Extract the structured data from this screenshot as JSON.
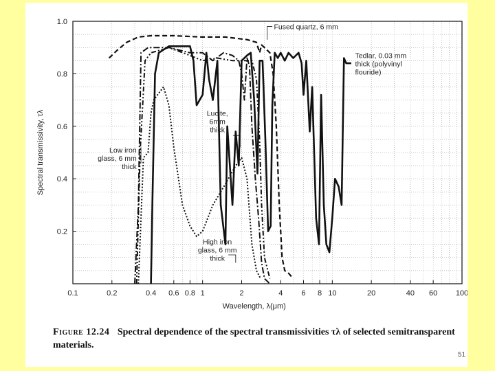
{
  "caption": {
    "figure_number": "Figure 12.24",
    "text": "Spectral dependence of the spectral transmissivities τλ of selected semitransparent materials."
  },
  "page_number": "51",
  "colors": {
    "background": "#ffffa0",
    "frame": "#ffffff",
    "ink": "#111111",
    "grid": "#888888"
  },
  "chart_data": {
    "type": "line",
    "title": "",
    "xlabel": "Wavelength, λ(μm)",
    "ylabel": "Spectral transmissivity, τλ",
    "xscale": "log",
    "xlim": [
      0.1,
      100
    ],
    "ylim": [
      0,
      1.0
    ],
    "grid": true,
    "x_ticks": [
      {
        "value": 0.1,
        "label": "0.1"
      },
      {
        "value": 0.2,
        "label": "0.2"
      },
      {
        "value": 0.4,
        "label": "0.4"
      },
      {
        "value": 0.6,
        "label": "0.6"
      },
      {
        "value": 0.8,
        "label": "0.8"
      },
      {
        "value": 1,
        "label": "1"
      },
      {
        "value": 2,
        "label": "2"
      },
      {
        "value": 4,
        "label": "4"
      },
      {
        "value": 6,
        "label": "6"
      },
      {
        "value": 8,
        "label": "8"
      },
      {
        "value": 10,
        "label": "10"
      },
      {
        "value": 20,
        "label": "20"
      },
      {
        "value": 40,
        "label": "40"
      },
      {
        "value": 60,
        "label": "60"
      },
      {
        "value": 100,
        "label": "100"
      }
    ],
    "y_ticks": [
      {
        "value": 0.2,
        "label": "0.2"
      },
      {
        "value": 0.4,
        "label": "0.4"
      },
      {
        "value": 0.6,
        "label": "0.6"
      },
      {
        "value": 0.8,
        "label": "0.8"
      },
      {
        "value": 1.0,
        "label": "1.0"
      }
    ],
    "series": [
      {
        "name": "Fused quartz, 6 mm",
        "style": "dashed",
        "points": [
          [
            0.19,
            0.86
          ],
          [
            0.22,
            0.89
          ],
          [
            0.26,
            0.92
          ],
          [
            0.32,
            0.94
          ],
          [
            0.4,
            0.945
          ],
          [
            0.6,
            0.945
          ],
          [
            1.0,
            0.94
          ],
          [
            1.5,
            0.94
          ],
          [
            2.2,
            0.93
          ],
          [
            2.6,
            0.92
          ],
          [
            2.75,
            0.88
          ],
          [
            2.85,
            0.91
          ],
          [
            3.0,
            0.9
          ],
          [
            3.3,
            0.88
          ],
          [
            3.5,
            0.8
          ],
          [
            3.7,
            0.6
          ],
          [
            3.9,
            0.3
          ],
          [
            4.1,
            0.1
          ],
          [
            4.3,
            0.05
          ],
          [
            4.6,
            0.04
          ],
          [
            5.0,
            0.02
          ]
        ]
      },
      {
        "name": "Tedlar, 0.03 mm thick (polyvinyl flouride)",
        "style": "solid",
        "points": [
          [
            0.4,
            0.0
          ],
          [
            0.41,
            0.3
          ],
          [
            0.43,
            0.8
          ],
          [
            0.46,
            0.88
          ],
          [
            0.55,
            0.905
          ],
          [
            0.8,
            0.905
          ],
          [
            0.85,
            0.85
          ],
          [
            0.9,
            0.68
          ],
          [
            1.0,
            0.72
          ],
          [
            1.07,
            0.88
          ],
          [
            1.12,
            0.78
          ],
          [
            1.2,
            0.7
          ],
          [
            1.3,
            0.85
          ],
          [
            1.38,
            0.3
          ],
          [
            1.5,
            0.15
          ],
          [
            1.55,
            0.6
          ],
          [
            1.7,
            0.3
          ],
          [
            1.8,
            0.58
          ],
          [
            1.9,
            0.45
          ],
          [
            2.0,
            0.85
          ],
          [
            2.2,
            0.87
          ],
          [
            2.35,
            0.88
          ],
          [
            2.5,
            0.7
          ],
          [
            2.65,
            0.42
          ],
          [
            2.75,
            0.85
          ],
          [
            2.9,
            0.85
          ],
          [
            3.05,
            0.55
          ],
          [
            3.2,
            0.2
          ],
          [
            3.35,
            0.22
          ],
          [
            3.45,
            0.68
          ],
          [
            3.6,
            0.88
          ],
          [
            3.8,
            0.86
          ],
          [
            4.0,
            0.88
          ],
          [
            4.3,
            0.85
          ],
          [
            4.6,
            0.88
          ],
          [
            5.0,
            0.86
          ],
          [
            5.5,
            0.88
          ],
          [
            5.8,
            0.84
          ],
          [
            6.0,
            0.72
          ],
          [
            6.3,
            0.85
          ],
          [
            6.7,
            0.58
          ],
          [
            7.0,
            0.75
          ],
          [
            7.5,
            0.25
          ],
          [
            7.9,
            0.15
          ],
          [
            8.2,
            0.72
          ],
          [
            8.6,
            0.3
          ],
          [
            9.0,
            0.15
          ],
          [
            9.5,
            0.12
          ],
          [
            10.0,
            0.25
          ],
          [
            10.5,
            0.4
          ],
          [
            11.2,
            0.37
          ],
          [
            11.8,
            0.3
          ],
          [
            12.3,
            0.86
          ],
          [
            12.8,
            0.84
          ],
          [
            14.0,
            0.84
          ]
        ]
      },
      {
        "name": "Lucite, 6mm thick",
        "style": "dash-dot",
        "points": [
          [
            0.3,
            0.0
          ],
          [
            0.32,
            0.3
          ],
          [
            0.335,
            0.88
          ],
          [
            0.38,
            0.9
          ],
          [
            0.55,
            0.9
          ],
          [
            0.8,
            0.88
          ],
          [
            1.0,
            0.88
          ],
          [
            1.2,
            0.85
          ],
          [
            1.45,
            0.88
          ],
          [
            1.7,
            0.87
          ],
          [
            1.9,
            0.85
          ],
          [
            2.0,
            0.8
          ],
          [
            2.1,
            0.7
          ],
          [
            2.2,
            0.86
          ],
          [
            2.3,
            0.83
          ],
          [
            2.4,
            0.6
          ],
          [
            2.55,
            0.4
          ],
          [
            2.7,
            0.25
          ],
          [
            2.85,
            0.08
          ],
          [
            3.0,
            0.02
          ],
          [
            3.3,
            0.0
          ]
        ]
      },
      {
        "name": "Low iron glass, 6 mm thick",
        "style": "dash-dot-dot",
        "points": [
          [
            0.31,
            0.0
          ],
          [
            0.33,
            0.5
          ],
          [
            0.36,
            0.85
          ],
          [
            0.4,
            0.88
          ],
          [
            0.55,
            0.9
          ],
          [
            0.8,
            0.87
          ],
          [
            1.0,
            0.85
          ],
          [
            1.3,
            0.86
          ],
          [
            1.7,
            0.85
          ],
          [
            2.0,
            0.85
          ],
          [
            2.4,
            0.85
          ],
          [
            2.6,
            0.78
          ],
          [
            2.75,
            0.55
          ],
          [
            2.85,
            0.3
          ],
          [
            3.0,
            0.1
          ],
          [
            3.3,
            0.02
          ]
        ]
      },
      {
        "name": "High iron glass, 6 mm thick",
        "style": "dotted",
        "points": [
          [
            0.32,
            0.0
          ],
          [
            0.35,
            0.48
          ],
          [
            0.38,
            0.5
          ],
          [
            0.4,
            0.65
          ],
          [
            0.42,
            0.7
          ],
          [
            0.45,
            0.72
          ],
          [
            0.5,
            0.75
          ],
          [
            0.55,
            0.68
          ],
          [
            0.6,
            0.52
          ],
          [
            0.7,
            0.3
          ],
          [
            0.8,
            0.22
          ],
          [
            0.9,
            0.18
          ],
          [
            1.0,
            0.2
          ],
          [
            1.2,
            0.3
          ],
          [
            1.5,
            0.38
          ],
          [
            1.8,
            0.45
          ],
          [
            2.0,
            0.48
          ],
          [
            2.2,
            0.4
          ],
          [
            2.4,
            0.15
          ],
          [
            2.6,
            0.05
          ],
          [
            2.8,
            0.02
          ]
        ]
      }
    ],
    "annotations": [
      {
        "text": [
          "Fused quartz, 6 mm"
        ],
        "data_x": 3.55,
        "data_y": 0.97
      },
      {
        "text": [
          "Tedlar, 0.03 mm",
          "thick (polyvinyl",
          "flouride)"
        ],
        "data_x": 15.0,
        "data_y": 0.86
      },
      {
        "text": [
          "Lucite,",
          "6mm",
          "thick"
        ],
        "data_x": 1.3,
        "data_y": 0.64
      },
      {
        "text": [
          "Low iron",
          "glass, 6 mm",
          "thick"
        ],
        "data_x": 0.31,
        "data_y": 0.5
      },
      {
        "text": [
          "High iron",
          "glass, 6 mm",
          "thick"
        ],
        "data_x": 1.3,
        "data_y": 0.15
      }
    ]
  }
}
